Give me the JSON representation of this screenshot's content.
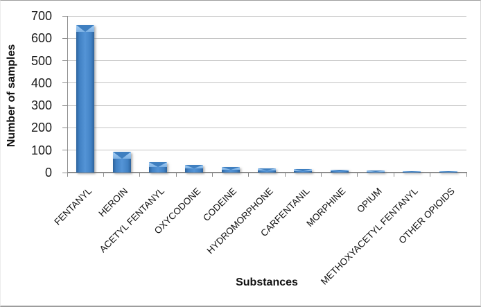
{
  "chart_data": {
    "type": "bar",
    "title": "",
    "xlabel": "Substances",
    "ylabel": "Number of samples",
    "categories": [
      "FENTANYL",
      "HEROIN",
      "ACETYL FENTANYL",
      "OXYCODONE",
      "CODEINE",
      "HYDROMORPHONE",
      "CARFENTANIL",
      "MORPHINE",
      "OPIUM",
      "METHOXYACETYL FENTANYL",
      "OTHER OPIOIDS"
    ],
    "values": [
      660,
      93,
      47,
      35,
      25,
      19,
      15,
      12,
      8,
      7,
      7
    ],
    "ylim": [
      0,
      700
    ],
    "y_ticks": [
      0,
      100,
      200,
      300,
      400,
      500,
      600,
      700
    ],
    "grid": "horizontal",
    "legend": "none",
    "colors": {
      "bar_fill": "#4181C4",
      "bar_edge": "#2D639C",
      "bar_highlight": "#A6CEF4",
      "gridline": "#C3C3C3",
      "axis_line": "#8C8C8C",
      "text": "#1A1A1A"
    }
  }
}
